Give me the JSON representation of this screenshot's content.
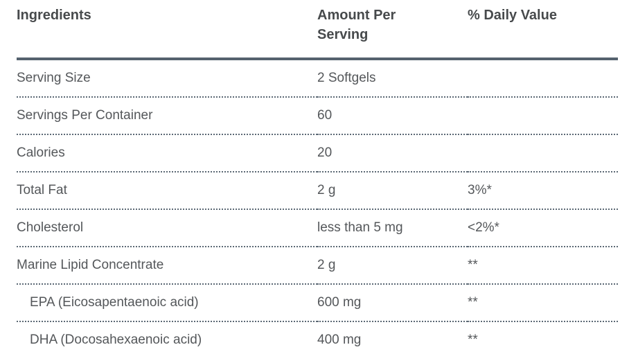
{
  "table": {
    "headers": {
      "ingredients": "Ingredients",
      "amount_per_serving": "Amount Per Serving",
      "daily_value": "% Daily Value"
    },
    "rows": [
      {
        "ingredient": "Serving Size",
        "amount": "2 Softgels",
        "daily_value": ""
      },
      {
        "ingredient": "Servings Per Container",
        "amount": "60",
        "daily_value": ""
      },
      {
        "ingredient": "Calories",
        "amount": "20",
        "daily_value": ""
      },
      {
        "ingredient": "Total Fat",
        "amount": "2 g",
        "daily_value": "3%*"
      },
      {
        "ingredient": "Cholesterol",
        "amount": "less than 5 mg",
        "daily_value": "<2%*"
      },
      {
        "ingredient": "Marine Lipid Concentrate",
        "amount": "2 g",
        "daily_value": "**"
      },
      {
        "ingredient": "EPA (Eicosapentaenoic acid)",
        "amount": "600 mg",
        "daily_value": "**"
      },
      {
        "ingredient": "DHA (Docosahexaenoic acid)",
        "amount": "400 mg",
        "daily_value": "**"
      }
    ],
    "colors": {
      "header_text": "#474a4c",
      "body_text": "#54575a",
      "solid_rule": "#55626e",
      "dotted_rule": "#5b6874",
      "background": "#ffffff"
    }
  }
}
